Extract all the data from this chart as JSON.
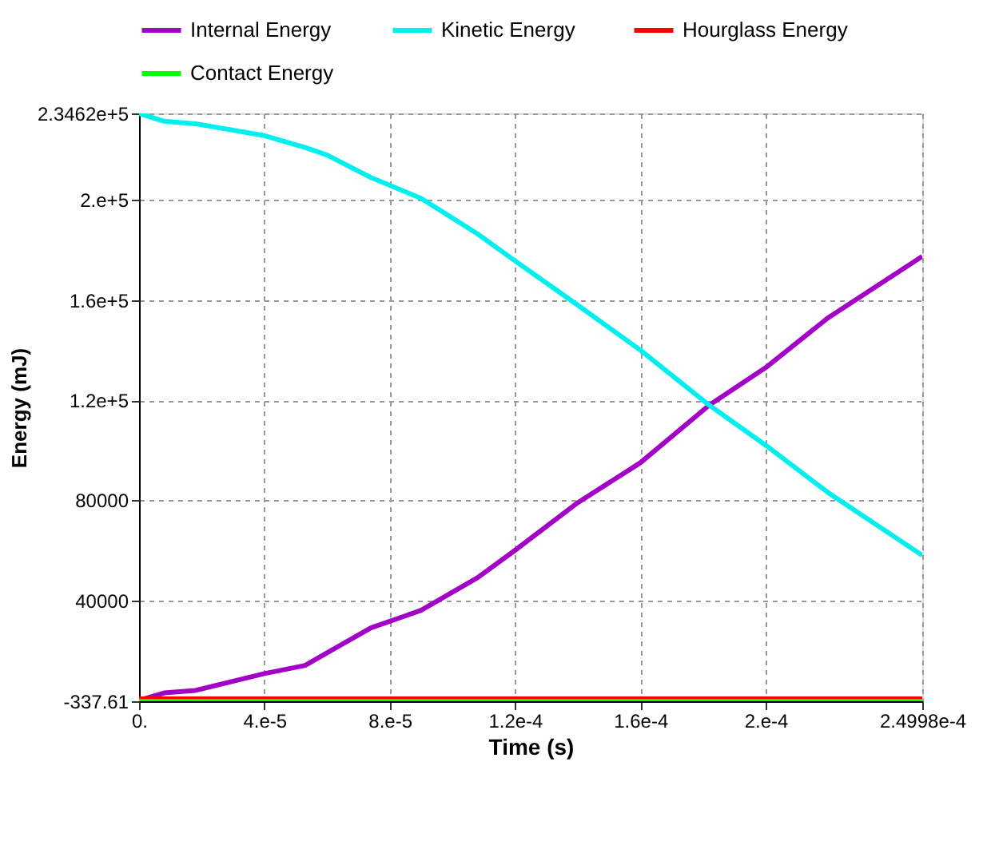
{
  "chart_data": {
    "type": "line",
    "xlabel": "Time (s)",
    "ylabel": "Energy (mJ)",
    "xlim": [
      0,
      0.00024998
    ],
    "ylim": [
      -337.61,
      234620
    ],
    "xticks": [
      {
        "value": 0,
        "label": "0."
      },
      {
        "value": 4e-05,
        "label": "4.e-5"
      },
      {
        "value": 8e-05,
        "label": "8.e-5"
      },
      {
        "value": 0.00012,
        "label": "1.2e-4"
      },
      {
        "value": 0.00016,
        "label": "1.6e-4"
      },
      {
        "value": 0.0002,
        "label": "2.e-4"
      },
      {
        "value": 0.00024998,
        "label": "2.4998e-4"
      }
    ],
    "yticks": [
      {
        "value": -337.61,
        "label": "-337.61"
      },
      40000,
      80000,
      {
        "value": 120000,
        "label": "1.2e+5"
      },
      {
        "value": 160000,
        "label": "1.6e+5"
      },
      {
        "value": 200000,
        "label": "2.e+5"
      },
      {
        "value": 234620,
        "label": "2.3462e+5"
      }
    ],
    "grid": true,
    "legend": "top",
    "marker": "none",
    "line_style": "solid",
    "x": [
      0,
      8e-06,
      1.8e-05,
      4e-05,
      5.3e-05,
      6e-05,
      7.4e-05,
      9e-05,
      0.000108,
      0.00012,
      0.00014,
      0.00016,
      0.000182,
      0.0002,
      0.00022,
      0.00024998
    ],
    "series": [
      {
        "name": "Internal Energy",
        "color": "#a300c8",
        "values": [
          0,
          3000,
          4000,
          10700,
          14000,
          19000,
          29000,
          36000,
          49000,
          60000,
          79000,
          95000,
          118000,
          133000,
          153000,
          177500
        ]
      },
      {
        "name": "Kinetic Energy",
        "color": "#00f0f0",
        "values": [
          234600,
          231500,
          230500,
          225750,
          221000,
          218000,
          209000,
          200700,
          186500,
          175700,
          158000,
          140000,
          118000,
          102000,
          83000,
          58000
        ]
      },
      {
        "name": "Hourglass Energy",
        "color": "#ff0000",
        "values": [
          600,
          600,
          600,
          600,
          600,
          600,
          600,
          600,
          600,
          600,
          600,
          600,
          600,
          600,
          600,
          600
        ]
      },
      {
        "name": "Contact Energy",
        "color": "#00ff00",
        "values": [
          -300,
          -300,
          -300,
          -300,
          -300,
          -300,
          -300,
          -300,
          -300,
          -300,
          -300,
          -300,
          -300,
          -300,
          -300,
          -300
        ]
      }
    ]
  }
}
